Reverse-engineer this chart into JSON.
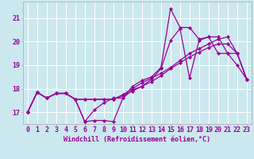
{
  "xlabel": "Windchill (Refroidissement éolien,°C)",
  "xlim": [
    -0.5,
    23.5
  ],
  "ylim": [
    16.5,
    21.7
  ],
  "yticks": [
    17,
    18,
    19,
    20,
    21
  ],
  "xticks": [
    0,
    1,
    2,
    3,
    4,
    5,
    6,
    7,
    8,
    9,
    10,
    11,
    12,
    13,
    14,
    15,
    16,
    17,
    18,
    19,
    20,
    21,
    22,
    23
  ],
  "background_color": "#cce8ef",
  "grid_color": "#ffffff",
  "line_color": "#990099",
  "line1_y": [
    17.0,
    17.85,
    17.6,
    17.8,
    17.8,
    17.55,
    16.6,
    16.65,
    16.65,
    16.6,
    17.6,
    17.95,
    18.1,
    18.4,
    18.85,
    20.05,
    20.55,
    18.45,
    20.05,
    20.2,
    19.5,
    19.5,
    19.0,
    18.4
  ],
  "line2_y": [
    17.0,
    17.85,
    17.6,
    17.8,
    17.8,
    17.55,
    16.6,
    17.1,
    17.4,
    17.6,
    17.6,
    18.1,
    18.35,
    18.5,
    18.9,
    21.4,
    20.6,
    20.6,
    20.1,
    20.2,
    20.2,
    19.5,
    19.5,
    18.4
  ],
  "line3_y": [
    17.0,
    17.85,
    17.6,
    17.8,
    17.8,
    17.55,
    17.55,
    17.55,
    17.55,
    17.55,
    17.7,
    17.9,
    18.1,
    18.3,
    18.55,
    18.85,
    19.1,
    19.35,
    19.55,
    19.75,
    19.9,
    19.9,
    19.5,
    18.4
  ],
  "line4_y": [
    17.0,
    17.85,
    17.6,
    17.8,
    17.8,
    17.55,
    17.55,
    17.55,
    17.55,
    17.55,
    17.75,
    18.0,
    18.25,
    18.45,
    18.65,
    18.9,
    19.2,
    19.5,
    19.7,
    19.9,
    20.1,
    20.2,
    19.5,
    18.4
  ],
  "xlabel_fontsize": 6,
  "tick_fontsize": 6,
  "lw": 0.9,
  "markersize": 2.2
}
